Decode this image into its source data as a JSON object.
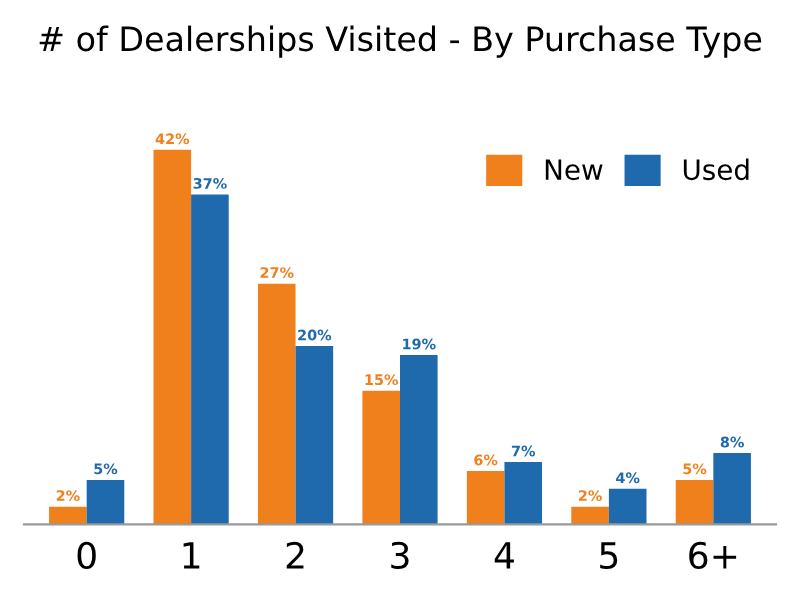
{
  "chart_data": {
    "type": "bar",
    "title": "# of Dealerships Visited - By Purchase Type",
    "categories": [
      "0",
      "1",
      "2",
      "3",
      "4",
      "5",
      "6+"
    ],
    "series": [
      {
        "name": "New",
        "color": "#f0801c",
        "values": [
          2,
          42,
          27,
          15,
          6,
          2,
          5
        ],
        "value_labels": [
          "2%",
          "42%",
          "27%",
          "15%",
          "6%",
          "2%",
          "5%"
        ]
      },
      {
        "name": "Used",
        "color": "#1f6aad",
        "values": [
          5,
          37,
          20,
          19,
          7,
          4,
          8
        ],
        "value_labels": [
          "5%",
          "37%",
          "20%",
          "19%",
          "7%",
          "4%",
          "8%"
        ]
      }
    ],
    "legend": "top right",
    "grid": false
  }
}
